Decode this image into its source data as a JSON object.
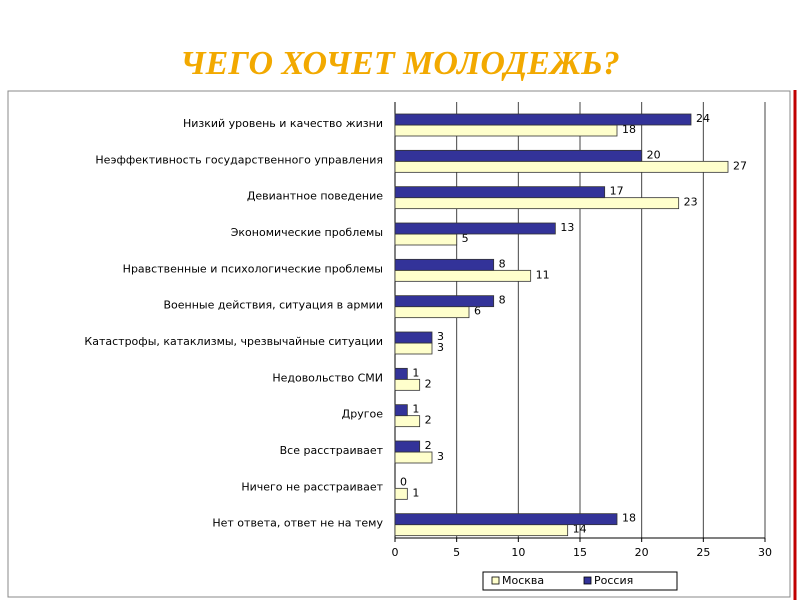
{
  "chart_data": {
    "type": "bar",
    "orientation": "horizontal",
    "title": "ЧЕГО ХОЧЕТ МОЛОДЕЖЬ?",
    "categories": [
      "Низкий уровень и качество жизни",
      "Неэффективность государственного управления",
      "Девиантное поведение",
      "Экономические проблемы",
      "Нравственные и психологические проблемы",
      "Военные действия, ситуация в армии",
      "Катастрофы, катаклизмы, чрезвычайные ситуации",
      "Недовольство СМИ",
      "Другое",
      "Все расстраивает",
      "Ничего не расстраивает",
      "Нет ответа, ответ не на тему"
    ],
    "series": [
      {
        "name": "Москва",
        "color": "#ffffcc",
        "values": [
          18,
          27,
          23,
          5,
          11,
          6,
          3,
          2,
          2,
          3,
          1,
          14
        ]
      },
      {
        "name": "Россия",
        "color": "#333399",
        "values": [
          24,
          20,
          17,
          13,
          8,
          8,
          3,
          1,
          1,
          2,
          0,
          18
        ]
      }
    ],
    "xlim": [
      0,
      30
    ],
    "xticks": [
      0,
      5,
      10,
      15,
      20,
      25,
      30
    ],
    "grid": true,
    "legend": "bottom"
  }
}
